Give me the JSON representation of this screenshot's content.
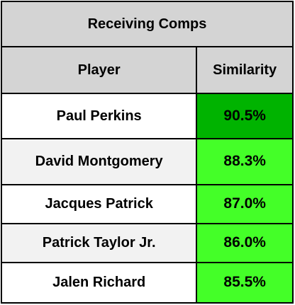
{
  "table": {
    "title": "Receiving Comps",
    "headers": {
      "player": "Player",
      "similarity": "Similarity"
    },
    "rows": [
      {
        "player": "Paul Perkins",
        "similarity": "90.5%",
        "color": "#00b300"
      },
      {
        "player": "David Montgomery",
        "similarity": "88.3%",
        "color": "#44ff28"
      },
      {
        "player": "Jacques Patrick",
        "similarity": "87.0%",
        "color": "#44ff28"
      },
      {
        "player": "Patrick Taylor Jr.",
        "similarity": "86.0%",
        "color": "#44ff28"
      },
      {
        "player": "Jalen Richard",
        "similarity": "85.5%",
        "color": "#44ff28"
      }
    ]
  }
}
